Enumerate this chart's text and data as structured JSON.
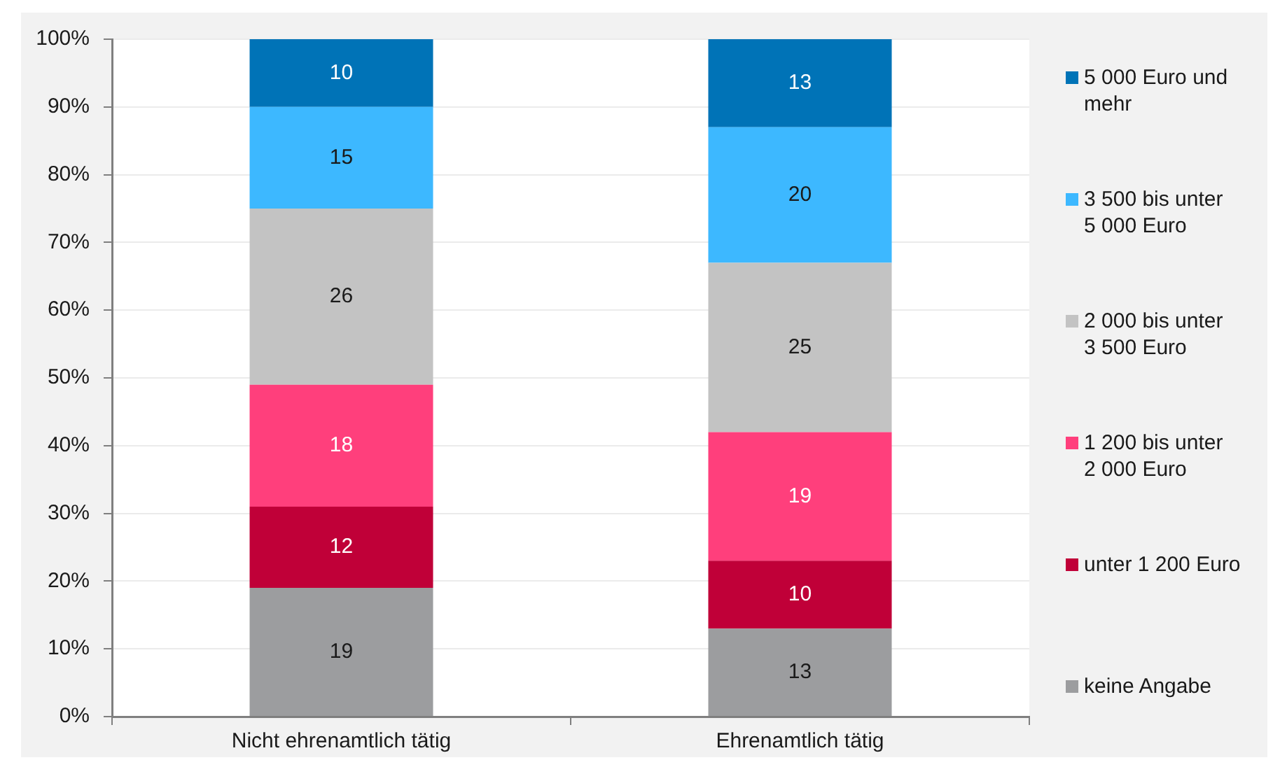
{
  "chart_data": {
    "type": "bar",
    "stacked": true,
    "categories": [
      "Nicht ehrenamtlich tätig",
      "Ehrenamtlich tätig"
    ],
    "series": [
      {
        "name": "keine Angabe",
        "color": "#9c9d9f",
        "values": [
          19,
          13
        ]
      },
      {
        "name": "unter 1 200 Euro",
        "color": "#c00038",
        "values": [
          12,
          10
        ]
      },
      {
        "name": "1 200 bis unter 2 000 Euro",
        "color": "#ff3f7c",
        "values": [
          18,
          19
        ]
      },
      {
        "name": "2 000 bis unter 3 500 Euro",
        "color": "#c3c3c3",
        "values": [
          26,
          25
        ]
      },
      {
        "name": "3 500 bis unter 5 000 Euro",
        "color": "#3db8ff",
        "values": [
          15,
          20
        ]
      },
      {
        "name": "5 000 Euro und mehr",
        "color": "#0073b7",
        "values": [
          10,
          13
        ]
      }
    ],
    "ylim": [
      0,
      100
    ],
    "yticks": [
      {
        "value": 0,
        "label": "0%"
      },
      {
        "value": 10,
        "label": "10%"
      },
      {
        "value": 20,
        "label": "20%"
      },
      {
        "value": 30,
        "label": "30%"
      },
      {
        "value": 40,
        "label": "40%"
      },
      {
        "value": 50,
        "label": "50%"
      },
      {
        "value": 60,
        "label": "60%"
      },
      {
        "value": 70,
        "label": "70%"
      },
      {
        "value": 80,
        "label": "80%"
      },
      {
        "value": 90,
        "label": "90%"
      },
      {
        "value": 100,
        "label": "100%"
      }
    ],
    "grid": "y",
    "legend": "right",
    "data_labels": true
  }
}
